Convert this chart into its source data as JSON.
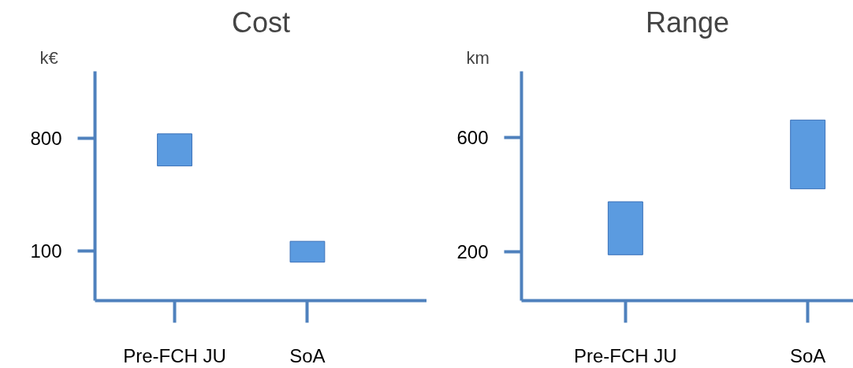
{
  "chart_data": [
    {
      "type": "bar",
      "title": "Cost",
      "ylabel": "k€",
      "categories": [
        "Pre-FCH JU",
        "SoA"
      ],
      "base": [
        630,
        30
      ],
      "values": [
        200,
        130
      ],
      "color": "#5b9be0",
      "ylim": [
        -210,
        1220
      ],
      "yticks": [
        100,
        800
      ]
    },
    {
      "type": "bar",
      "title": "Range",
      "ylabel": "km",
      "categories": [
        "Pre-FCH JU",
        "SoA"
      ],
      "base": [
        190,
        420
      ],
      "values": [
        185,
        240
      ],
      "color": "#5b9be0",
      "ylim": [
        30,
        830
      ],
      "yticks": [
        200,
        600
      ]
    }
  ]
}
